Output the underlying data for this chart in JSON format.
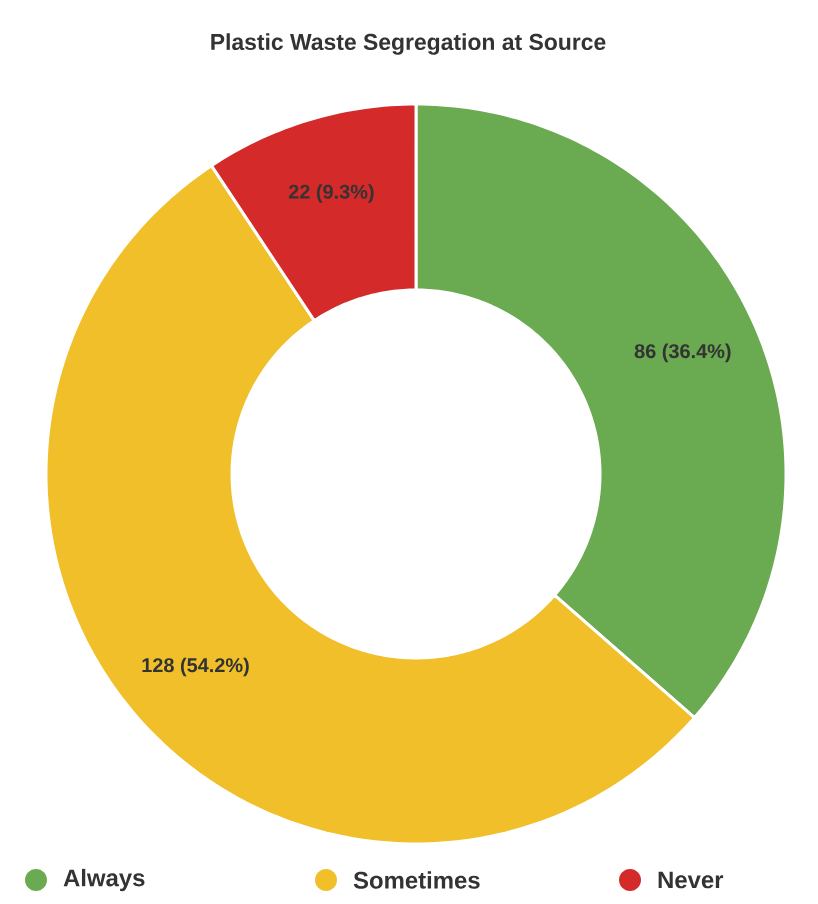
{
  "chart_data": {
    "type": "donut",
    "title": "Plastic Waste Segregation at Source",
    "categories": [
      "Always",
      "Sometimes",
      "Never"
    ],
    "values": [
      86,
      128,
      22
    ],
    "colors": [
      "#6aaa50",
      "#f0bf2a",
      "#d42a2a"
    ],
    "value_labels": [
      "86 (36.4%)",
      "128 (54.2%)",
      "22 (9.3%)"
    ],
    "legend": "bottom"
  }
}
